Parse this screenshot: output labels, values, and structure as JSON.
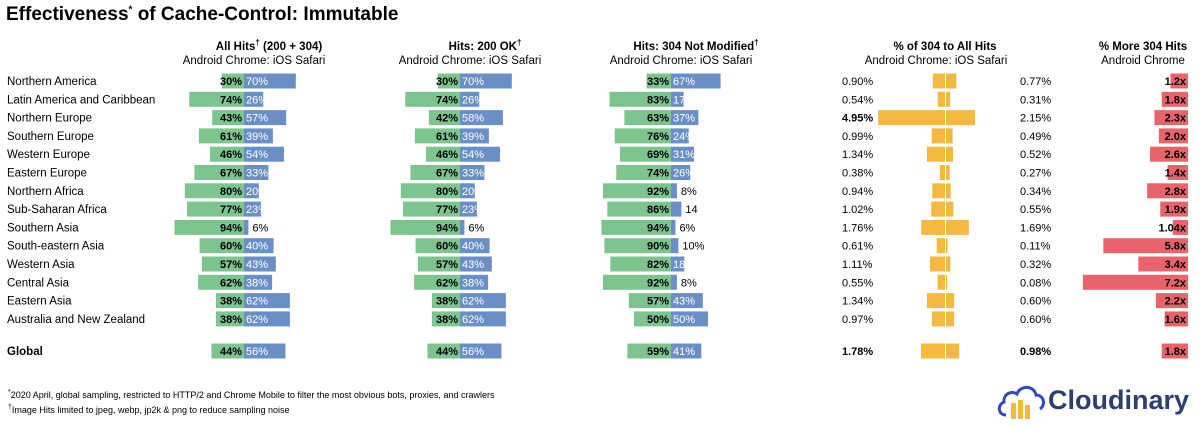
{
  "title": {
    "main": "Effectiveness",
    "sup": "*",
    "rest": " of Cache-Control: Immutable"
  },
  "colors": {
    "android": "#7dc48f",
    "ios": "#6a8fc7",
    "pct304": "#f5b942",
    "more304": "#e8646a"
  },
  "icons": {
    "logo": "cloud-icon"
  },
  "logo_text": "Cloudinary",
  "footnotes": [
    {
      "sup": "*",
      "text": "2020 April, global sampling, restricted to HTTP/2 and Chrome Mobile to filter the most obvious bots, proxies, and crawlers"
    },
    {
      "sup": "†",
      "text": "Image Hits limited to jpeg, webp, jp2k & png to reduce sampling noise"
    }
  ],
  "chart_data": {
    "type": "bar",
    "categories": [
      "Northern America",
      "Latin America and Caribbean",
      "Northern Europe",
      "Southern Europe",
      "Western Europe",
      "Eastern Europe",
      "Northern Africa",
      "Sub-Saharan Africa",
      "Southern Asia",
      "South-eastern Asia",
      "Western Asia",
      "Central Asia",
      "Eastern Asia",
      "Australia and New Zealand"
    ],
    "global_label": "Global",
    "panels": [
      {
        "title": "All Hits",
        "title_sup": "†",
        "title_rest": " (200 + 304)",
        "subtitle": "Android Chrome: iOS Safari",
        "android": [
          30,
          74,
          43,
          61,
          46,
          67,
          80,
          77,
          94,
          60,
          57,
          62,
          38,
          38
        ],
        "ios": [
          70,
          26,
          57,
          39,
          54,
          33,
          20,
          23,
          6,
          40,
          43,
          38,
          62,
          62
        ],
        "android_labels": [
          "30%",
          "74%",
          "43%",
          "61%",
          "46%",
          "67%",
          "80%",
          "77%",
          "94%",
          "60%",
          "57%",
          "62%",
          "38%",
          "38%"
        ],
        "ios_labels": [
          "70%",
          "26%",
          "57%",
          "39%",
          "54%",
          "33%",
          "20%",
          "23%",
          "6%",
          "40%",
          "43%",
          "38%",
          "62%",
          "62%"
        ],
        "global": {
          "android": 44,
          "ios": 56,
          "android_label": "44%",
          "ios_label": "56%"
        }
      },
      {
        "title": "Hits: 200 OK",
        "title_sup": "†",
        "title_rest": "",
        "subtitle": "Android Chrome: iOS Safari",
        "android": [
          30,
          74,
          42,
          61,
          46,
          67,
          80,
          77,
          94,
          60,
          57,
          62,
          38,
          38
        ],
        "ios": [
          70,
          26,
          58,
          39,
          54,
          33,
          20,
          23,
          6,
          40,
          43,
          38,
          62,
          62
        ],
        "android_labels": [
          "30%",
          "74%",
          "42%",
          "61%",
          "46%",
          "67%",
          "80%",
          "77%",
          "94%",
          "60%",
          "57%",
          "62%",
          "38%",
          "38%"
        ],
        "ios_labels": [
          "70%",
          "26%",
          "58%",
          "39%",
          "54%",
          "33%",
          "20%",
          "23%",
          "6%",
          "40%",
          "43%",
          "38%",
          "62%",
          "62%"
        ],
        "global": {
          "android": 44,
          "ios": 56,
          "android_label": "44%",
          "ios_label": "56%"
        }
      },
      {
        "title": "Hits: 304 Not Modified",
        "title_sup": "†",
        "title_rest": "",
        "subtitle": "Android Chrome: iOS Safari",
        "android": [
          33,
          83,
          63,
          76,
          69,
          74,
          92,
          86,
          94,
          90,
          82,
          92,
          57,
          50
        ],
        "ios": [
          67,
          17,
          37,
          24,
          31,
          26,
          8,
          14,
          6,
          10,
          18,
          8,
          43,
          50
        ],
        "android_labels": [
          "33%",
          "83%",
          "63%",
          "76%",
          "69%",
          "74%",
          "92%",
          "86%",
          "94%",
          "90%",
          "82%",
          "92%",
          "57%",
          "50%"
        ],
        "ios_labels": [
          "67%",
          "17%",
          "37%",
          "24%",
          "31%",
          "26%",
          "8%",
          "14",
          "6%",
          "10%",
          "18%",
          "8%",
          "43%",
          "50%"
        ],
        "global": {
          "android": 59,
          "ios": 41,
          "android_label": "59%",
          "ios_label": "41%"
        }
      }
    ],
    "pct304": {
      "title": "% of 304 to All Hits",
      "subtitle": "Android Chrome: iOS Safari",
      "android": [
        0.9,
        0.54,
        4.95,
        0.99,
        1.34,
        0.38,
        0.94,
        1.02,
        1.76,
        0.61,
        1.11,
        0.55,
        1.34,
        0.97
      ],
      "ios": [
        0.77,
        0.31,
        2.15,
        0.49,
        0.52,
        0.27,
        0.34,
        0.55,
        1.69,
        0.11,
        0.32,
        0.08,
        0.6,
        0.6
      ],
      "android_labels": [
        "0.90%",
        "0.54%",
        "4.95%",
        "0.99%",
        "1.34%",
        "0.38%",
        "0.94%",
        "1.02%",
        "1.76%",
        "0.61%",
        "1.11%",
        "0.55%",
        "1.34%",
        "0.97%"
      ],
      "ios_labels": [
        "0.77%",
        "0.31%",
        "2.15%",
        "0.49%",
        "0.52%",
        "0.27%",
        "0.34%",
        "0.55%",
        "1.69%",
        "0.11%",
        "0.32%",
        "0.08%",
        "0.60%",
        "0.60%"
      ],
      "global": {
        "android": 1.78,
        "ios": 0.98,
        "android_label": "1.78%",
        "ios_label": "0.98%"
      }
    },
    "more304": {
      "title": "% More 304 Hits",
      "subtitle": "Android Chrome",
      "values": [
        1.2,
        1.8,
        2.3,
        2.0,
        2.6,
        1.4,
        2.8,
        1.9,
        1.04,
        5.8,
        3.4,
        7.2,
        2.2,
        1.6
      ],
      "labels": [
        "1.2x",
        "1.8x",
        "2.3x",
        "2.0x",
        "2.6x",
        "1.4x",
        "2.8x",
        "1.9x",
        "1.04x",
        "5.8x",
        "3.4x",
        "7.2x",
        "2.2x",
        "1.6x"
      ],
      "global": {
        "value": 1.8,
        "label": "1.8x"
      }
    }
  }
}
